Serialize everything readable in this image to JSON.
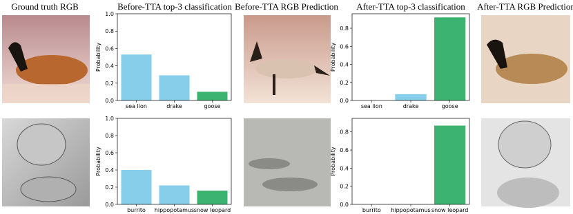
{
  "column_headers": [
    "Ground truth RGB",
    "Before-TTA top-3 classification",
    "Before-TTA RGB Prediction",
    "After-TTA top-3 classification",
    "After-TTA RGB Prediction"
  ],
  "chart_data": [
    {
      "type": "bar",
      "ylabel": "Probability",
      "categories": [
        "sea lion",
        "drake",
        "goose"
      ],
      "values": [
        0.53,
        0.29,
        0.1
      ],
      "colors": [
        "#87ceeb",
        "#87ceeb",
        "#3cb371"
      ],
      "ylim": [
        0,
        1
      ],
      "yticks": [
        {
          "value": 0,
          "label": "0.0"
        },
        0.2,
        0.4,
        0.6,
        0.8,
        {
          "value": 1,
          "label": "1.0"
        }
      ]
    },
    {
      "type": "bar",
      "ylabel": "Probability",
      "categories": [
        "sea lion",
        "drake",
        "goose"
      ],
      "values": [
        0,
        0.07,
        0.92
      ],
      "colors": [
        "#87ceeb",
        "#87ceeb",
        "#3cb371"
      ],
      "ylim": [
        0,
        0.96
      ],
      "yticks": [
        {
          "value": 0,
          "label": "0.0"
        },
        0.2,
        0.4,
        0.6,
        0.8
      ]
    },
    {
      "type": "bar",
      "ylabel": "Probability",
      "categories": [
        "burrito",
        "hippopotamus",
        "snow leopard"
      ],
      "values": [
        0.4,
        0.22,
        0.16
      ],
      "colors": [
        "#87ceeb",
        "#87ceeb",
        "#3cb371"
      ],
      "ylim": [
        0,
        1
      ],
      "yticks": [
        {
          "value": 0,
          "label": "0.0"
        },
        0.2,
        0.4,
        0.6,
        0.8,
        {
          "value": 1,
          "label": "1.0"
        }
      ]
    },
    {
      "type": "bar",
      "ylabel": "Probability",
      "categories": [
        "burrito",
        "hippopotamus",
        "snow leopard"
      ],
      "values": [
        0,
        0,
        0.87
      ],
      "colors": [
        "#87ceeb",
        "#87ceeb",
        "#3cb371"
      ],
      "ylim": [
        0,
        0.95
      ],
      "yticks": [
        {
          "value": 0,
          "label": "0.0"
        },
        0.2,
        0.4,
        0.6,
        0.8
      ]
    }
  ]
}
